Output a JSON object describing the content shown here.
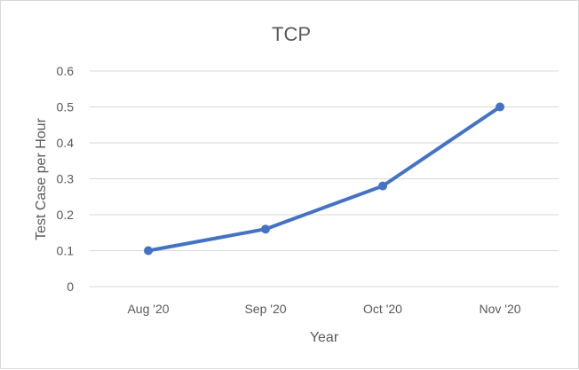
{
  "chart_data": {
    "type": "line",
    "title": "TCP",
    "xlabel": "Year",
    "ylabel": "Test Case per Hour",
    "categories": [
      "Aug '20",
      "Sep '20",
      "Oct '20",
      "Nov '20"
    ],
    "series": [
      {
        "values": [
          0.1,
          0.16,
          0.28,
          0.5
        ]
      }
    ],
    "ylim": [
      0,
      0.6
    ],
    "yticks": [
      0,
      0.1,
      0.2,
      0.3,
      0.4,
      0.5,
      0.6
    ],
    "ytick_labels": [
      "0",
      "0.1",
      "0.2",
      "0.3",
      "0.4",
      "0.5",
      "0.6"
    ],
    "grid": true,
    "legend": "none",
    "colors": {
      "series": "#4472c4",
      "grid": "#d9d9d9",
      "text": "#595959"
    }
  }
}
